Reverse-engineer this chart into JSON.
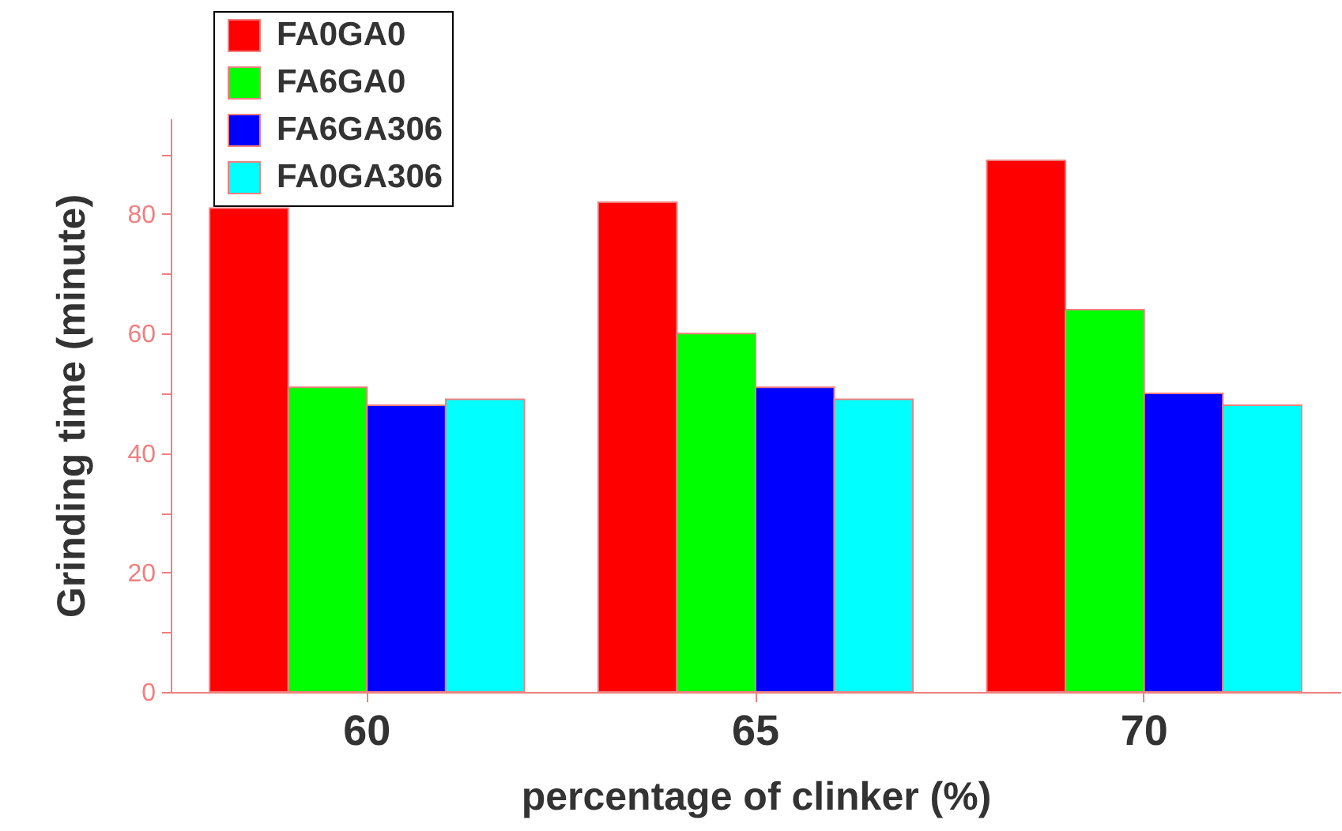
{
  "chart_data": {
    "type": "bar",
    "xlabel": "percentage of clinker (%)",
    "ylabel": "Grinding time (minute)",
    "categories": [
      "60",
      "65",
      "70"
    ],
    "series": [
      {
        "name": "FA0GA0",
        "color": "#ff0000",
        "values": [
          81,
          82,
          89
        ]
      },
      {
        "name": "FA6GA0",
        "color": "#00ff00",
        "values": [
          51,
          60,
          64
        ]
      },
      {
        "name": "FA6GA306",
        "color": "#0000ff",
        "values": [
          48,
          51,
          50
        ]
      },
      {
        "name": "FA0GA306",
        "color": "#00ffff",
        "values": [
          49,
          49,
          48
        ]
      }
    ],
    "ylim": [
      0,
      96
    ],
    "yticks": [
      0,
      {
        "value": 10,
        "label": null
      },
      20,
      {
        "value": 30,
        "label": null
      },
      40,
      {
        "value": 50,
        "label": null
      },
      60,
      {
        "value": 70,
        "label": null
      },
      80,
      {
        "value": 90,
        "label": null
      }
    ],
    "grid": false,
    "legend": "top left"
  }
}
